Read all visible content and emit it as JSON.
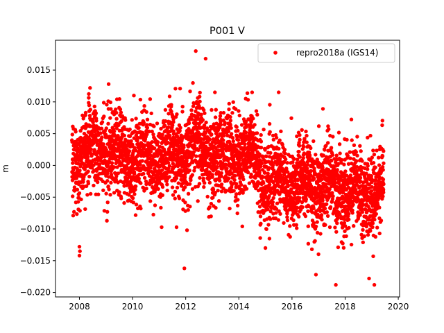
{
  "chart_data": {
    "type": "scatter",
    "title": "P001 V",
    "xlabel": "",
    "ylabel": "m",
    "xlim": [
      2007.1,
      2020.05
    ],
    "ylim": [
      -0.0207,
      0.0197
    ],
    "xticks": [
      2008,
      2010,
      2012,
      2014,
      2016,
      2018,
      2020
    ],
    "xtick_labels": [
      "2008",
      "2010",
      "2012",
      "2014",
      "2016",
      "2018",
      "2020"
    ],
    "yticks": [
      0.015,
      0.01,
      0.005,
      0.0,
      -0.005,
      -0.01,
      -0.015,
      -0.02
    ],
    "ytick_labels": [
      "0.015",
      "0.010",
      "0.005",
      "0.000",
      "−0.005",
      "−0.010",
      "−0.015",
      "−0.020"
    ],
    "legend": {
      "position": "top-right"
    },
    "grid": false,
    "series": [
      {
        "name": "repro2018a (IGS14)",
        "color": "#ff0000",
        "marker": "circle",
        "trend": [
          [
            2007.75,
            0.001
          ],
          [
            2009.0,
            0.0025
          ],
          [
            2010.0,
            0.001
          ],
          [
            2011.0,
            0.0015
          ],
          [
            2012.0,
            0.002
          ],
          [
            2012.5,
            0.0035
          ],
          [
            2013.0,
            0.0005
          ],
          [
            2014.0,
            0.002
          ],
          [
            2014.5,
            0.0015
          ],
          [
            2015.0,
            -0.0025
          ],
          [
            2016.0,
            -0.003
          ],
          [
            2017.0,
            -0.003
          ],
          [
            2018.0,
            -0.0035
          ],
          [
            2019.0,
            -0.0045
          ],
          [
            2019.45,
            -0.003
          ]
        ],
        "spread": 0.0045,
        "x_range": [
          2007.72,
          2019.45
        ],
        "notable_points": [
          [
            2012.38,
            0.018
          ],
          [
            2012.75,
            0.0168
          ],
          [
            2009.1,
            0.0128
          ],
          [
            2008.4,
            0.0122
          ],
          [
            2010.05,
            0.011
          ],
          [
            2015.5,
            0.0115
          ],
          [
            2013.1,
            0.0115
          ],
          [
            2014.5,
            0.0115
          ],
          [
            2008.0,
            -0.0128
          ],
          [
            2008.02,
            -0.0135
          ],
          [
            2008.0,
            -0.0142
          ],
          [
            2011.95,
            -0.0162
          ],
          [
            2017.65,
            -0.0188
          ],
          [
            2019.1,
            -0.0188
          ],
          [
            2018.9,
            -0.0178
          ],
          [
            2016.9,
            -0.0172
          ],
          [
            2012.05,
            -0.0102
          ],
          [
            2015.0,
            -0.013
          ],
          [
            2016.75,
            -0.0132
          ]
        ]
      }
    ]
  }
}
